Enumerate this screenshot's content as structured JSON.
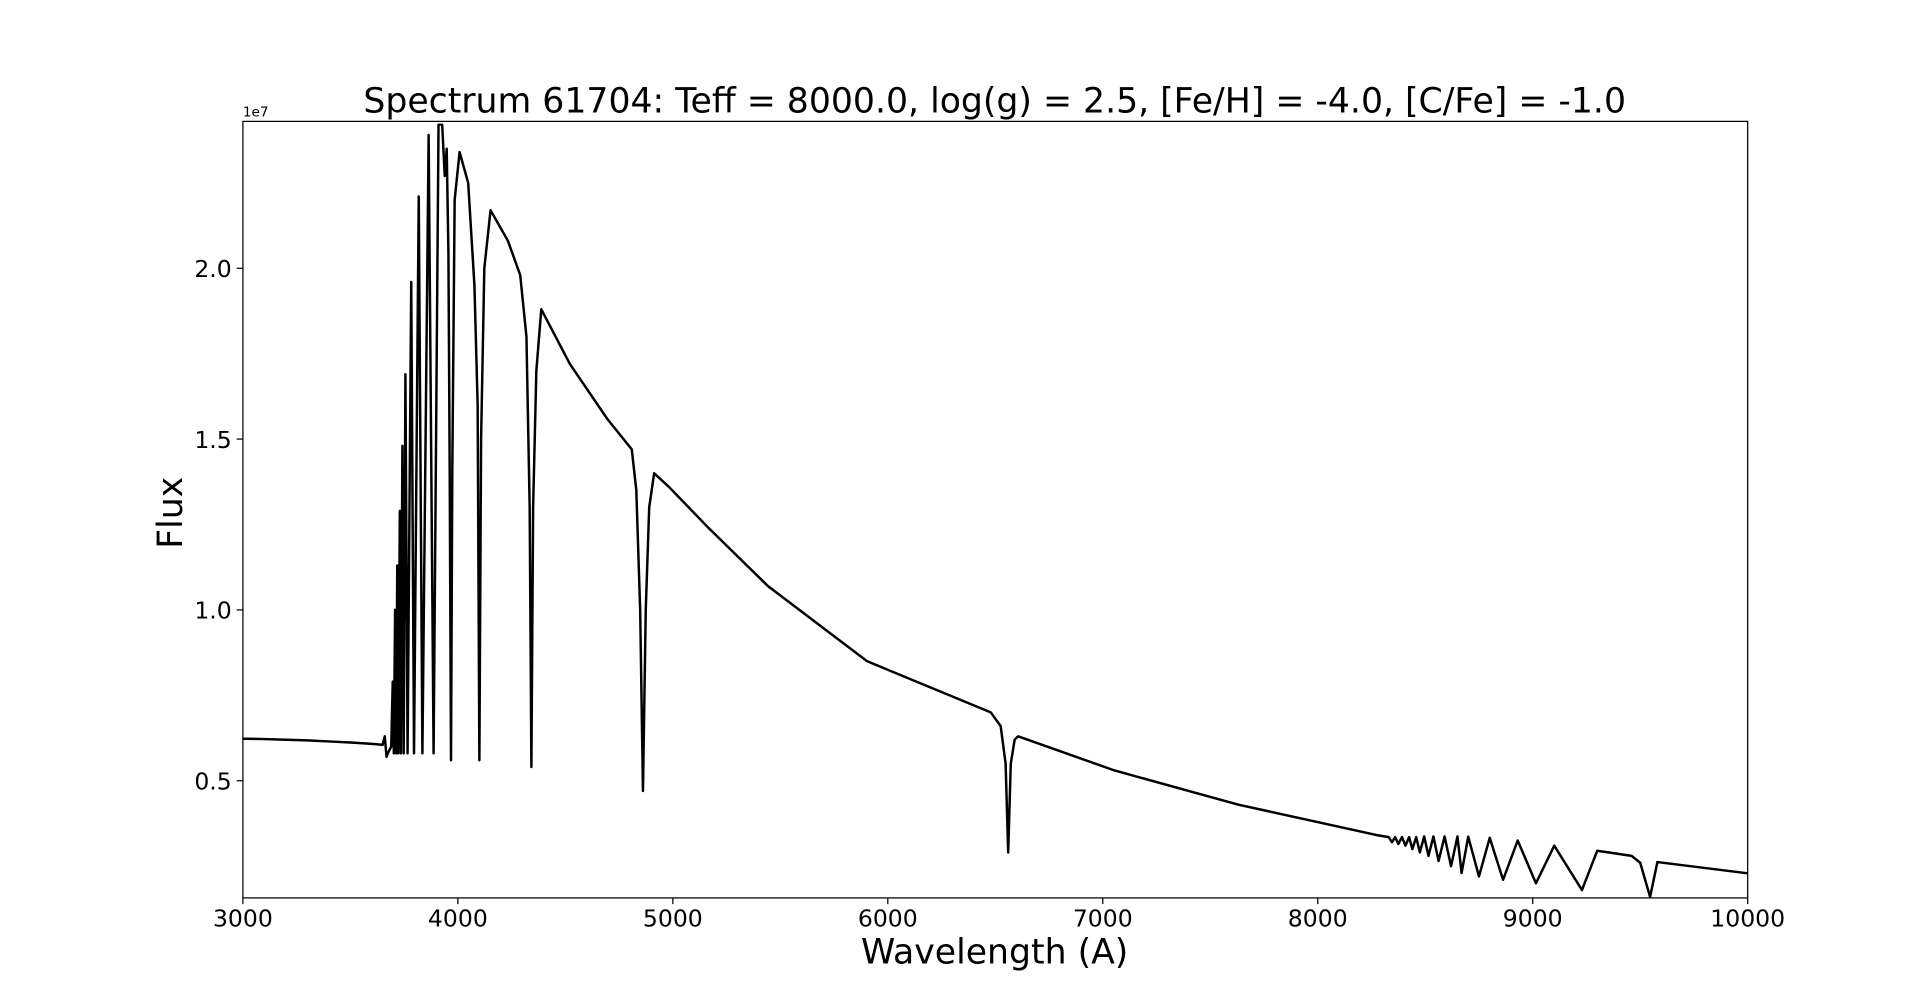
{
  "chart_data": {
    "type": "line",
    "title": "Spectrum 61704: Teff = 8000.0, log(g) = 2.5, [Fe/H] = -4.0, [C/Fe] = -1.0",
    "xlabel": "Wavelength (A)",
    "ylabel": "Flux",
    "y_offset_label": "1e7",
    "color": "#000000",
    "xlim": [
      3000,
      10000
    ],
    "ylim": [
      0.157,
      2.43
    ],
    "xticks": [
      3000,
      4000,
      5000,
      6000,
      7000,
      8000,
      9000,
      10000
    ],
    "yticks": [
      0.5,
      {
        "value": 1,
        "label": "1.0"
      },
      1.5,
      {
        "value": 2,
        "label": "2.0"
      }
    ],
    "x": [
      3000,
      3100,
      3200,
      3300,
      3400,
      3500,
      3600,
      3650,
      3660,
      3668,
      3674,
      3690,
      3697,
      3702,
      3708,
      3713,
      3718,
      3723,
      3730,
      3735,
      3742,
      3748,
      3756,
      3766,
      3783,
      3796,
      3818,
      3835,
      3864,
      3887,
      3910,
      3927,
      3939,
      3948,
      3956,
      3962,
      3968,
      3974,
      3985,
      4008,
      4048,
      4077,
      4092,
      4100,
      4108,
      4123,
      4152,
      4233,
      4290,
      4319,
      4334,
      4342,
      4350,
      4365,
      4388,
      4521,
      4694,
      4809,
      4830,
      4848,
      4861,
      4874,
      4890,
      4913,
      4982,
      5166,
      5442,
      5903,
      6479,
      6525,
      6548,
      6560,
      6572,
      6590,
      6606,
      7055,
      7631,
      8282,
      8330,
      8345,
      8360,
      8375,
      8392,
      8408,
      8425,
      8440,
      8458,
      8475,
      8495,
      8515,
      8538,
      8562,
      8590,
      8620,
      8650,
      8669,
      8700,
      8750,
      8800,
      8862,
      8930,
      9015,
      9100,
      9229,
      9300,
      9460,
      9500,
      9546,
      9580,
      10000
    ],
    "values": [
      0.623,
      0.622,
      0.62,
      0.618,
      0.615,
      0.612,
      0.608,
      0.605,
      0.63,
      0.57,
      0.58,
      0.6,
      0.79,
      0.58,
      1.0,
      0.58,
      1.13,
      0.58,
      1.29,
      0.58,
      1.48,
      0.58,
      1.69,
      0.58,
      1.96,
      0.58,
      2.21,
      0.58,
      2.39,
      0.58,
      2.42,
      2.42,
      2.27,
      2.35,
      2.05,
      1.4,
      0.56,
      1.4,
      2.2,
      2.34,
      2.25,
      1.95,
      1.6,
      0.56,
      1.5,
      2.0,
      2.17,
      2.08,
      1.98,
      1.8,
      1.3,
      0.54,
      1.3,
      1.7,
      1.88,
      1.72,
      1.56,
      1.47,
      1.35,
      1.0,
      0.47,
      1.0,
      1.3,
      1.4,
      1.36,
      1.24,
      1.07,
      0.85,
      0.7,
      0.66,
      0.55,
      0.29,
      0.55,
      0.62,
      0.63,
      0.53,
      0.43,
      0.34,
      0.335,
      0.32,
      0.335,
      0.315,
      0.335,
      0.31,
      0.335,
      0.3,
      0.335,
      0.29,
      0.337,
      0.28,
      0.337,
      0.265,
      0.337,
      0.25,
      0.337,
      0.23,
      0.336,
      0.22,
      0.333,
      0.21,
      0.325,
      0.2,
      0.31,
      0.18,
      0.295,
      0.28,
      0.26,
      0.16,
      0.262,
      0.229
    ]
  }
}
